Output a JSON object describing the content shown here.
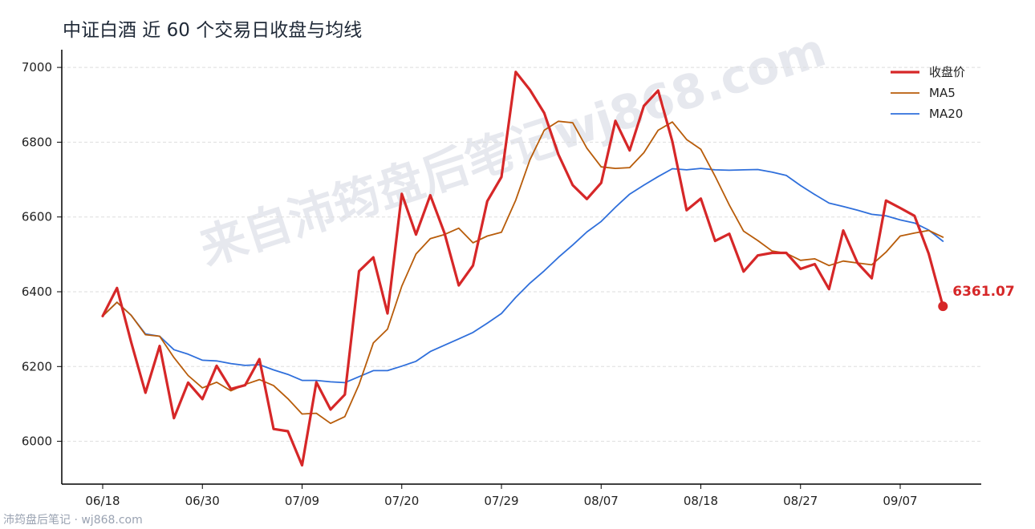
{
  "title": "中证白酒 近 60 个交易日收盘与均线",
  "watermark": "来自沛筠盘后笔记wj868.com",
  "footer": "沛筠盘后笔记 · wj868.com",
  "last_value_label": "6361.07",
  "colors": {
    "close": "#d62728",
    "ma5": "#b85c0a",
    "ma20": "#2f6fdb",
    "grid": "#dddddd",
    "axis": "#000000"
  },
  "chart_data": {
    "type": "line",
    "title": "中证白酒 近 60 个交易日收盘与均线",
    "xlabel": "",
    "ylabel": "",
    "ylim": [
      5880,
      7060
    ],
    "yticks": [
      6000,
      6200,
      6400,
      6600,
      6800,
      7000
    ],
    "xtick_labels": [
      {
        "label": "06/18",
        "index": 0
      },
      {
        "label": "06/30",
        "index": 7
      },
      {
        "label": "07/09",
        "index": 14
      },
      {
        "label": "07/20",
        "index": 21
      },
      {
        "label": "07/29",
        "index": 28
      },
      {
        "label": "08/07",
        "index": 35
      },
      {
        "label": "08/18",
        "index": 42
      },
      {
        "label": "08/27",
        "index": 49
      },
      {
        "label": "09/07",
        "index": 56
      }
    ],
    "grid": "horizontal dashed",
    "legend_position": "top-right",
    "series": [
      {
        "name": "收盘价",
        "values": [
          6335,
          6410,
          6265,
          6130,
          6255,
          6062,
          6157,
          6113,
          6202,
          6140,
          6150,
          6220,
          6033,
          6027,
          5936,
          6158,
          6085,
          6125,
          6455,
          6492,
          6342,
          6662,
          6553,
          6658,
          6557,
          6417,
          6470,
          6642,
          6707,
          6988,
          6940,
          6878,
          6767,
          6685,
          6648,
          6691,
          6857,
          6778,
          6897,
          6938,
          6802,
          6618,
          6649,
          6536,
          6555,
          6454,
          6497,
          6504,
          6504,
          6461,
          6474,
          6407,
          6564,
          6477,
          6436,
          6644,
          6624,
          6603,
          6502,
          6361.07
        ]
      },
      {
        "name": "MA5",
        "values": [
          6335,
          6372,
          6337,
          6285,
          6281,
          6224,
          6176,
          6143,
          6158,
          6135,
          6152,
          6165,
          6149,
          6114,
          6073,
          6075,
          6048,
          6066,
          6152,
          6263,
          6300,
          6415,
          6501,
          6542,
          6553,
          6570,
          6531,
          6549,
          6559,
          6645,
          6753,
          6832,
          6856,
          6852,
          6784,
          6734,
          6730,
          6732,
          6772,
          6832,
          6854,
          6807,
          6781,
          6709,
          6632,
          6562,
          6537,
          6509,
          6503,
          6484,
          6488,
          6470,
          6482,
          6477,
          6472,
          6506,
          6549,
          6557,
          6564,
          6546
        ]
      },
      {
        "name": "MA20",
        "values": [
          6335,
          6372,
          6337,
          6287,
          6281,
          6245,
          6233,
          6217,
          6215,
          6208,
          6203,
          6205,
          6191,
          6179,
          6163,
          6163,
          6159,
          6157,
          6173,
          6189,
          6189,
          6201,
          6214,
          6240,
          6257,
          6274,
          6291,
          6316,
          6342,
          6385,
          6423,
          6456,
          6492,
          6525,
          6560,
          6588,
          6626,
          6661,
          6685,
          6708,
          6729,
          6726,
          6730,
          6726,
          6725,
          6726,
          6727,
          6720,
          6711,
          6684,
          6660,
          6637,
          6628,
          6618,
          6607,
          6603,
          6592,
          6584,
          6565,
          6535
        ]
      }
    ]
  }
}
